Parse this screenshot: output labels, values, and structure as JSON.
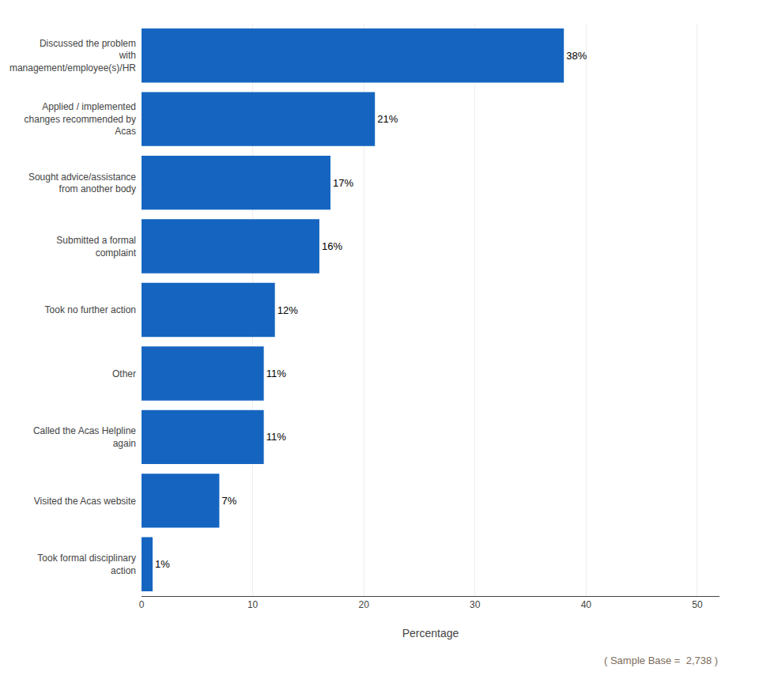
{
  "chart_data": {
    "type": "bar",
    "orientation": "horizontal",
    "categories": [
      "Discussed the problem\nwith\nmanagement/employee(s)/HR",
      "Applied / implemented\nchanges recommended by\nAcas",
      "Sought advice/assistance\nfrom another body",
      "Submitted a formal\ncomplaint",
      "Took no further action",
      "Other",
      "Called the Acas Helpline\nagain",
      "Visited the Acas website",
      "Took formal disciplinary\naction"
    ],
    "values": [
      38,
      21,
      17,
      16,
      12,
      11,
      11,
      7,
      1
    ],
    "value_labels": [
      "38%",
      "21%",
      "17%",
      "16%",
      "12%",
      "11%",
      "11%",
      "7%",
      "1%"
    ],
    "data_labels": true,
    "color": "#1565C0",
    "xlabel": "Percentage",
    "xlim": [
      0,
      52
    ],
    "xticks": [
      0,
      10,
      20,
      30,
      40,
      50
    ],
    "grid": true,
    "annotations": [
      "( Sample Base =  2,738 )"
    ]
  }
}
